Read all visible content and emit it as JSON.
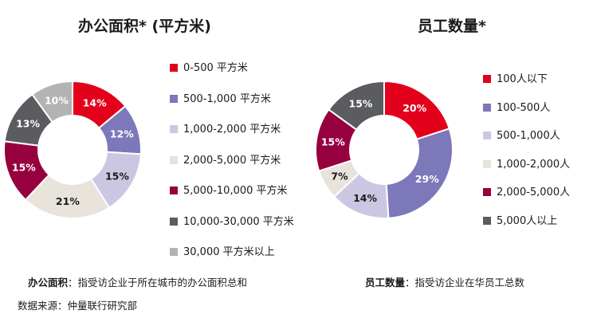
{
  "charts_header": {
    "left_title": "办公面积* (平方米)",
    "right_title": "员工数量*"
  },
  "footnotes": {
    "left_term": "办公面积",
    "left_text": "：指受访企业于所在城市的办公面积总和",
    "right_term": "员工数量",
    "right_text": "：指受访企业在华员工总数",
    "source": "数据来源：仲量联行研究部"
  },
  "chart_data": [
    {
      "type": "pie",
      "title": "办公面积* (平方米)",
      "donut": true,
      "categories": [
        "0-500 平方米",
        "500-1,000 平方米",
        "1,000-2,000 平方米",
        "2,000-5,000 平方米",
        "5,000-10,000 平方米",
        "10,000-30,000 平方米",
        "30,000 平方米以上"
      ],
      "values": [
        14,
        12,
        15,
        21,
        15,
        13,
        10
      ],
      "labels": [
        "14%",
        "12%",
        "15%",
        "21%",
        "15%",
        "13%",
        "10%"
      ],
      "colors": [
        "#e3001b",
        "#7d78ba",
        "#cbc7e3",
        "#e8e3db",
        "#96003f",
        "#5b5c60",
        "#b3b3b3"
      ],
      "label_colors": [
        "#ffffff",
        "#ffffff",
        "#1a1a1a",
        "#1a1a1a",
        "#ffffff",
        "#ffffff",
        "#ffffff"
      ],
      "legend_position": "right"
    },
    {
      "type": "pie",
      "title": "员工数量*",
      "donut": true,
      "categories": [
        "100人以下",
        "100-500人",
        "500-1,000人",
        "1,000-2,000人",
        "2,000-5,000人",
        "5,000人以上"
      ],
      "values": [
        20,
        29,
        14,
        7,
        15,
        15
      ],
      "labels": [
        "20%",
        "29%",
        "14%",
        "7%",
        "15%",
        "15%"
      ],
      "colors": [
        "#e3001b",
        "#7d78ba",
        "#cbc7e3",
        "#e8e3db",
        "#96003f",
        "#5b5c60"
      ],
      "label_colors": [
        "#ffffff",
        "#ffffff",
        "#1a1a1a",
        "#1a1a1a",
        "#ffffff",
        "#ffffff"
      ],
      "legend_position": "right"
    }
  ]
}
